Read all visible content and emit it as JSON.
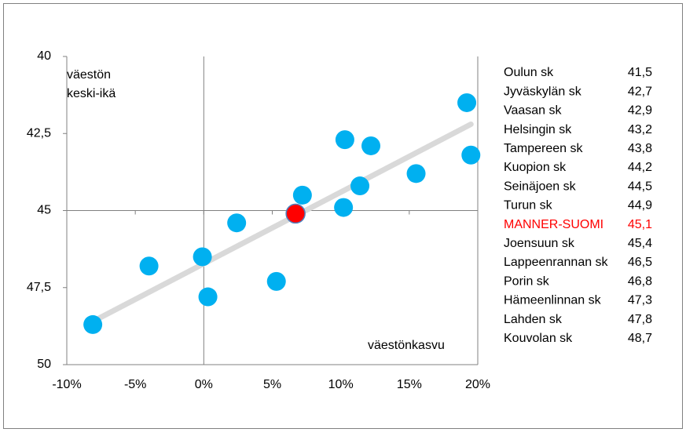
{
  "chart_data": {
    "type": "scatter",
    "annotations": [
      "väestön",
      "keski-ikä",
      "väestönkasvu"
    ],
    "labels": [
      "Oulun sk",
      "Jyväskylän sk",
      "Vaasan sk",
      "Helsingin sk",
      "Tampereen sk",
      "Kuopion sk",
      "Seinäjoen sk",
      "Turun sk",
      "MANNER-SUOMI",
      "Joensuun sk",
      "Lappeenrannan sk",
      "Porin sk",
      "Hämeenlinnan sk",
      "Lahden sk",
      "Kouvolan sk"
    ],
    "x": [
      19.2,
      10.3,
      12.2,
      19.5,
      15.5,
      11.4,
      7.2,
      10.2,
      6.7,
      2.4,
      -0.1,
      -4.0,
      5.3,
      0.3,
      -8.1
    ],
    "values": [
      41.5,
      42.7,
      42.9,
      43.2,
      43.8,
      44.2,
      44.5,
      44.9,
      45.1,
      45.4,
      46.5,
      46.8,
      47.3,
      47.8,
      48.7
    ],
    "value_labels": [
      "41,5",
      "42,7",
      "42,9",
      "43,2",
      "43,8",
      "44,2",
      "44,5",
      "44,9",
      "45,1",
      "45,4",
      "46,5",
      "46,8",
      "47,3",
      "47,8",
      "48,7"
    ],
    "colors": [
      "#00b0f0",
      "#00b0f0",
      "#00b0f0",
      "#00b0f0",
      "#00b0f0",
      "#00b0f0",
      "#00b0f0",
      "#00b0f0",
      "#ff0000",
      "#00b0f0",
      "#00b0f0",
      "#00b0f0",
      "#00b0f0",
      "#00b0f0",
      "#00b0f0"
    ],
    "trendline": {
      "x": [
        -8.1,
        19.5
      ],
      "values": [
        48.6,
        42.2
      ],
      "color": "#d9d9d9"
    },
    "xlim": [
      -10,
      20
    ],
    "xticks": [
      {
        "value": -10,
        "label": "-10%"
      },
      {
        "value": -5,
        "label": "-5%"
      },
      {
        "value": 0,
        "label": "0%"
      },
      {
        "value": 5,
        "label": "5%"
      },
      {
        "value": 10,
        "label": "10%"
      },
      {
        "value": 15,
        "label": "15%"
      },
      {
        "value": 20,
        "label": "20%"
      }
    ],
    "ylim": [
      40,
      50
    ],
    "y_inverted": true,
    "yticks": [
      40,
      {
        "value": 42.5,
        "label": "42,5"
      },
      45,
      {
        "value": 47.5,
        "label": "47,5"
      },
      50
    ],
    "x_cross": 0,
    "y_cross": 45
  }
}
